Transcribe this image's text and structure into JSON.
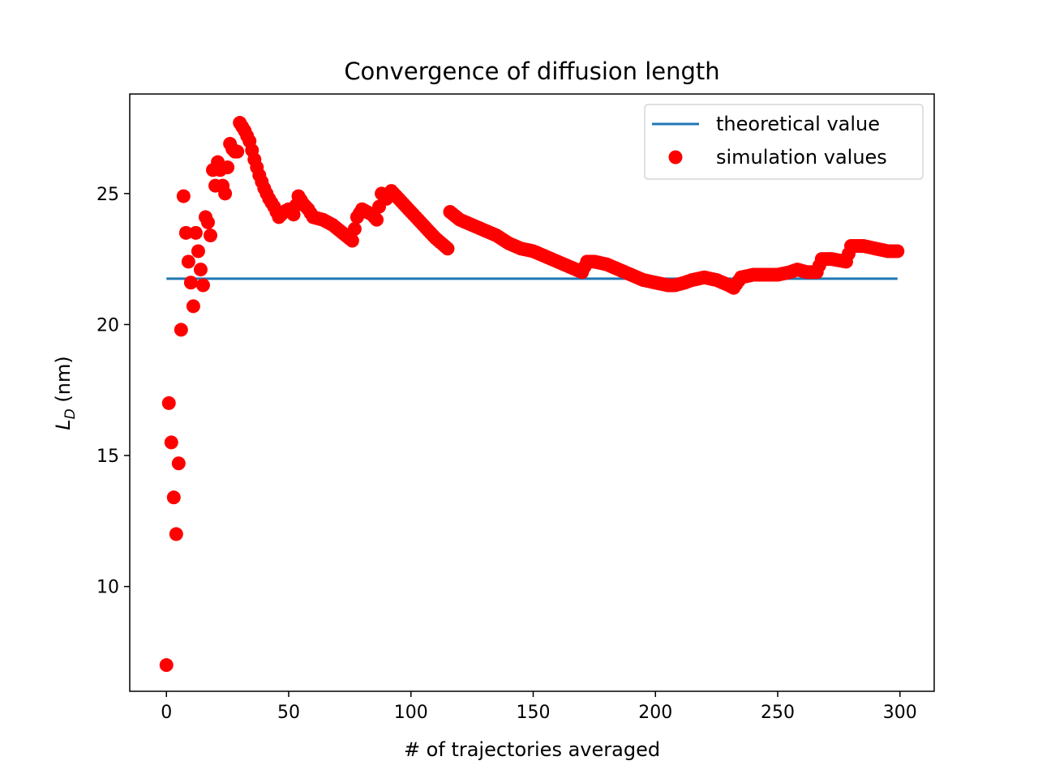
{
  "chart_data": {
    "type": "scatter",
    "title": "Convergence of diffusion length",
    "xlabel": "# of trajectories averaged",
    "ylabel": {
      "main": "L",
      "sub": "D",
      "unit": " (nm)"
    },
    "xlim": [
      -15,
      314
    ],
    "ylim": [
      6,
      28.8
    ],
    "xticks": [
      0,
      50,
      100,
      150,
      200,
      250,
      300
    ],
    "yticks": [
      10,
      15,
      20,
      25
    ],
    "grid": false,
    "legend_position": "top-right",
    "colors": {
      "theory": "#1f77b4",
      "simulation": "#ff0000"
    },
    "series": [
      {
        "name": "theoretical value",
        "kind": "line",
        "x": [
          0,
          299
        ],
        "y": [
          21.75,
          21.75
        ]
      },
      {
        "name": "simulation values",
        "kind": "points",
        "anchors_x": [
          0,
          1,
          2,
          3,
          4,
          5,
          6,
          7,
          8,
          9,
          10,
          11,
          12,
          13,
          14,
          15,
          16,
          17,
          18,
          19,
          20,
          21,
          22,
          23,
          24,
          25,
          26,
          27,
          28,
          29,
          30,
          32,
          34,
          36,
          38,
          40,
          42,
          44,
          46,
          48,
          50,
          52,
          54,
          56,
          58,
          60,
          64,
          68,
          72,
          76,
          78,
          80,
          84,
          86,
          88,
          90,
          92,
          96,
          100,
          105,
          110,
          115,
          116,
          120,
          125,
          130,
          135,
          140,
          145,
          150,
          155,
          160,
          165,
          170,
          172,
          175,
          180,
          185,
          190,
          195,
          200,
          205,
          208,
          212,
          215,
          220,
          225,
          230,
          232,
          235,
          240,
          245,
          250,
          255,
          258,
          262,
          266,
          268,
          272,
          278,
          280,
          285,
          290,
          295,
          299
        ],
        "anchors_y": [
          7.0,
          17.0,
          15.5,
          13.4,
          12.0,
          14.7,
          19.8,
          24.9,
          23.5,
          22.4,
          21.6,
          20.7,
          23.5,
          22.8,
          22.1,
          21.5,
          24.1,
          23.9,
          23.4,
          25.9,
          25.3,
          26.2,
          25.9,
          25.3,
          25.0,
          26.0,
          26.9,
          26.7,
          26.6,
          26.6,
          27.7,
          27.4,
          27.0,
          26.3,
          25.7,
          25.2,
          24.8,
          24.5,
          24.1,
          24.3,
          24.4,
          24.2,
          24.9,
          24.6,
          24.4,
          24.1,
          24.0,
          23.8,
          23.5,
          23.2,
          24.1,
          24.4,
          24.2,
          24.0,
          25.0,
          24.8,
          25.1,
          24.7,
          24.3,
          23.8,
          23.3,
          22.9,
          24.3,
          24.0,
          23.8,
          23.6,
          23.4,
          23.1,
          22.9,
          22.8,
          22.6,
          22.4,
          22.2,
          22.0,
          22.4,
          22.4,
          22.3,
          22.1,
          21.9,
          21.7,
          21.6,
          21.5,
          21.5,
          21.6,
          21.7,
          21.8,
          21.7,
          21.5,
          21.4,
          21.8,
          21.9,
          21.9,
          21.9,
          22.0,
          22.1,
          22.0,
          22.0,
          22.5,
          22.5,
          22.4,
          23.0,
          23.0,
          22.9,
          22.8,
          22.8
        ]
      }
    ]
  }
}
